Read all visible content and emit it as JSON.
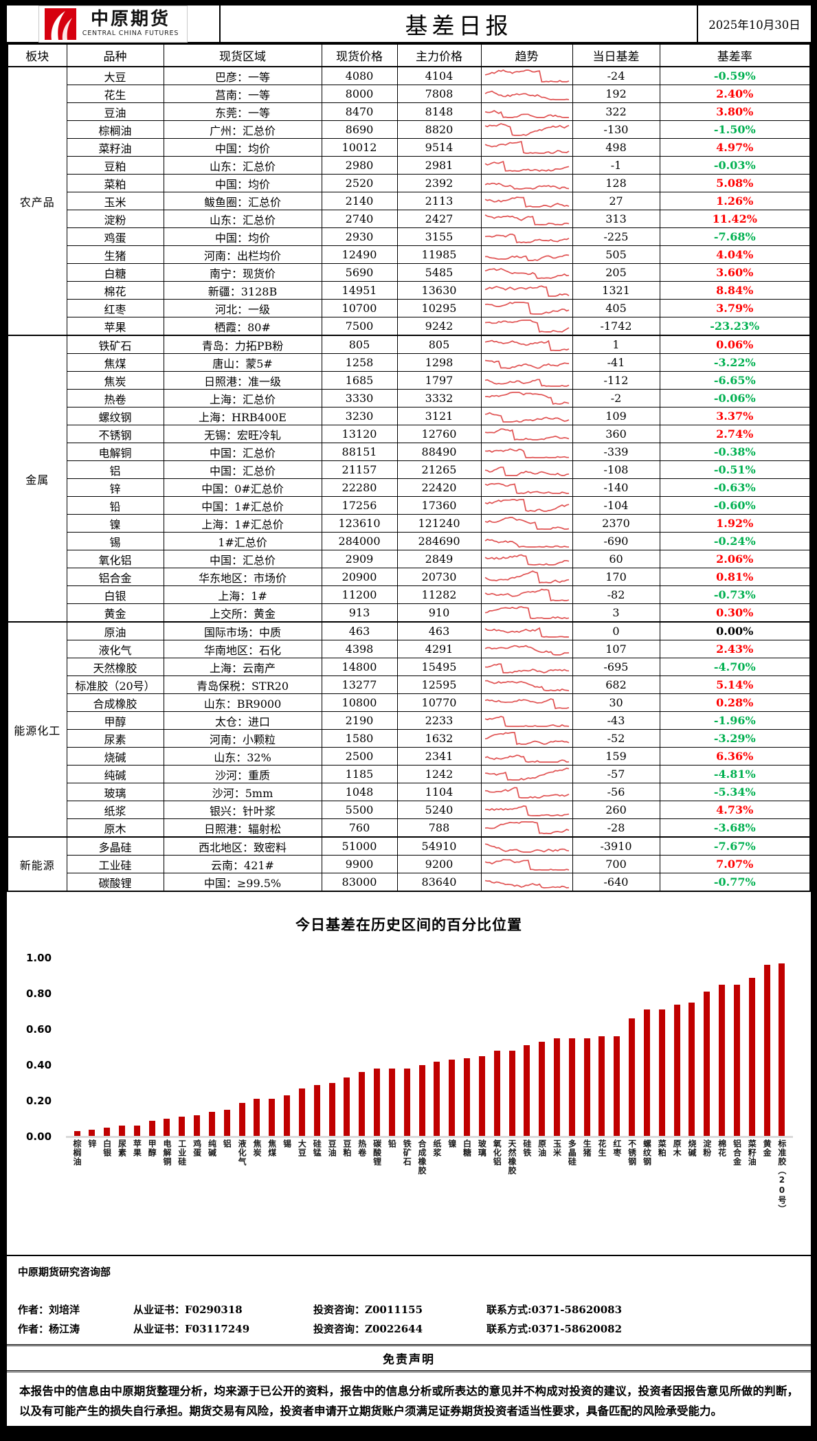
{
  "header": {
    "brand_cn": "中原期货",
    "brand_en": "CENTRAL CHINA FUTURES",
    "title": "基差日报",
    "date": "2025年10月30日"
  },
  "table": {
    "columns": [
      "板块",
      "品种",
      "现货区域",
      "现货价格",
      "主力价格",
      "趋势",
      "当日基差",
      "基差率"
    ],
    "sectors": [
      {
        "name": "农产品",
        "rows": [
          [
            "大豆",
            "巴彦：一等",
            "4080",
            "4104",
            "-24",
            "-0.59%"
          ],
          [
            "花生",
            "莒南：一等",
            "8000",
            "7808",
            "192",
            "2.40%"
          ],
          [
            "豆油",
            "东莞：一等",
            "8470",
            "8148",
            "322",
            "3.80%"
          ],
          [
            "棕榈油",
            "广州：汇总价",
            "8690",
            "8820",
            "-130",
            "-1.50%"
          ],
          [
            "菜籽油",
            "中国：均价",
            "10012",
            "9514",
            "498",
            "4.97%"
          ],
          [
            "豆粕",
            "山东：汇总价",
            "2980",
            "2981",
            "-1",
            "-0.03%"
          ],
          [
            "菜粕",
            "中国：均价",
            "2520",
            "2392",
            "128",
            "5.08%"
          ],
          [
            "玉米",
            "鲅鱼圈：汇总价",
            "2140",
            "2113",
            "27",
            "1.26%"
          ],
          [
            "淀粉",
            "山东：汇总价",
            "2740",
            "2427",
            "313",
            "11.42%"
          ],
          [
            "鸡蛋",
            "中国：均价",
            "2930",
            "3155",
            "-225",
            "-7.68%"
          ],
          [
            "生猪",
            "河南：出栏均价",
            "12490",
            "11985",
            "505",
            "4.04%"
          ],
          [
            "白糖",
            "南宁：现货价",
            "5690",
            "5485",
            "205",
            "3.60%"
          ],
          [
            "棉花",
            "新疆：3128B",
            "14951",
            "13630",
            "1321",
            "8.84%"
          ],
          [
            "红枣",
            "河北：一级",
            "10700",
            "10295",
            "405",
            "3.79%"
          ],
          [
            "苹果",
            "栖霞：80#",
            "7500",
            "9242",
            "-1742",
            "-23.23%"
          ]
        ]
      },
      {
        "name": "金属",
        "rows": [
          [
            "铁矿石",
            "青岛：力拓PB粉",
            "805",
            "805",
            "1",
            "0.06%"
          ],
          [
            "焦煤",
            "唐山：蒙5#",
            "1258",
            "1298",
            "-41",
            "-3.22%"
          ],
          [
            "焦炭",
            "日照港：准一级",
            "1685",
            "1797",
            "-112",
            "-6.65%"
          ],
          [
            "热卷",
            "上海：汇总价",
            "3330",
            "3332",
            "-2",
            "-0.06%"
          ],
          [
            "螺纹钢",
            "上海：HRB400E",
            "3230",
            "3121",
            "109",
            "3.37%"
          ],
          [
            "不锈钢",
            "无锡：宏旺冷轧",
            "13120",
            "12760",
            "360",
            "2.74%"
          ],
          [
            "电解铜",
            "中国：汇总价",
            "88151",
            "88490",
            "-339",
            "-0.38%"
          ],
          [
            "铝",
            "中国：汇总价",
            "21157",
            "21265",
            "-108",
            "-0.51%"
          ],
          [
            "锌",
            "中国：0#汇总价",
            "22280",
            "22420",
            "-140",
            "-0.63%"
          ],
          [
            "铅",
            "中国：1#汇总价",
            "17256",
            "17360",
            "-104",
            "-0.60%"
          ],
          [
            "镍",
            "上海：1#汇总价",
            "123610",
            "121240",
            "2370",
            "1.92%"
          ],
          [
            "锡",
            "1#汇总价",
            "284000",
            "284690",
            "-690",
            "-0.24%"
          ],
          [
            "氧化铝",
            "中国：汇总价",
            "2909",
            "2849",
            "60",
            "2.06%"
          ],
          [
            "铝合金",
            "华东地区：市场价",
            "20900",
            "20730",
            "170",
            "0.81%"
          ],
          [
            "白银",
            "上海：1#",
            "11200",
            "11282",
            "-82",
            "-0.73%"
          ],
          [
            "黄金",
            "上交所：黄金",
            "913",
            "910",
            "3",
            "0.30%"
          ]
        ]
      },
      {
        "name": "能源化工",
        "rows": [
          [
            "原油",
            "国际市场：中质",
            "463",
            "463",
            "0",
            "0.00%"
          ],
          [
            "液化气",
            "华南地区：石化",
            "4398",
            "4291",
            "107",
            "2.43%"
          ],
          [
            "天然橡胶",
            "上海：云南产",
            "14800",
            "15495",
            "-695",
            "-4.70%"
          ],
          [
            "标准胶（20号）",
            "青岛保税：STR20",
            "13277",
            "12595",
            "682",
            "5.14%"
          ],
          [
            "合成橡胶",
            "山东：BR9000",
            "10800",
            "10770",
            "30",
            "0.28%"
          ],
          [
            "甲醇",
            "太仓：进口",
            "2190",
            "2233",
            "-43",
            "-1.96%"
          ],
          [
            "尿素",
            "河南：小颗粒",
            "1580",
            "1632",
            "-52",
            "-3.29%"
          ],
          [
            "烧碱",
            "山东：32%",
            "2500",
            "2341",
            "159",
            "6.36%"
          ],
          [
            "纯碱",
            "沙河：重质",
            "1185",
            "1242",
            "-57",
            "-4.81%"
          ],
          [
            "玻璃",
            "沙河：5mm",
            "1048",
            "1104",
            "-56",
            "-5.34%"
          ],
          [
            "纸浆",
            "银兴：针叶浆",
            "5500",
            "5240",
            "260",
            "4.73%"
          ],
          [
            "原木",
            "日照港：辐射松",
            "760",
            "788",
            "-28",
            "-3.68%"
          ]
        ]
      },
      {
        "name": "新能源",
        "rows": [
          [
            "多晶硅",
            "西北地区：致密料",
            "51000",
            "54910",
            "-3910",
            "-7.67%"
          ],
          [
            "工业硅",
            "云南：421#",
            "9900",
            "9200",
            "700",
            "7.07%"
          ],
          [
            "碳酸锂",
            "中国：≥99.5%",
            "83000",
            "83640",
            "-640",
            "-0.77%"
          ]
        ]
      }
    ]
  },
  "chart_data": {
    "type": "bar",
    "title": "今日基差在历史区间的百分比位置",
    "bar_color": "#C00000",
    "ylim": [
      0,
      1
    ],
    "y_tick_labels": [
      "0.00",
      "0.20",
      "0.40",
      "0.60",
      "0.80",
      "1.00"
    ],
    "y_tick_values": [
      0,
      0.2,
      0.4,
      0.6,
      0.8,
      1.0
    ],
    "categories": [
      "棕榈油",
      "锌",
      "白银",
      "尿素",
      "苹果",
      "甲醇",
      "电解铜",
      "工业硅",
      "鸡蛋",
      "纯碱",
      "铝",
      "液化气",
      "焦炭",
      "焦煤",
      "锡",
      "大豆",
      "硅锰",
      "豆油",
      "豆粕",
      "热卷",
      "碳酸锂",
      "铅",
      "铁矿石",
      "合成橡胶",
      "纸浆",
      "镍",
      "白糖",
      "玻璃",
      "氧化铝",
      "天然橡胶",
      "硅铁",
      "原油",
      "玉米",
      "多晶硅",
      "生猪",
      "花生",
      "红枣",
      "不锈钢",
      "螺纹钢",
      "菜粕",
      "原木",
      "烧碱",
      "淀粉",
      "棉花",
      "铝合金",
      "菜籽油",
      "黄金",
      "标准胶（20号）"
    ],
    "values": [
      0.03,
      0.04,
      0.05,
      0.06,
      0.06,
      0.09,
      0.1,
      0.11,
      0.12,
      0.14,
      0.15,
      0.19,
      0.21,
      0.21,
      0.23,
      0.27,
      0.29,
      0.3,
      0.33,
      0.36,
      0.38,
      0.38,
      0.38,
      0.4,
      0.42,
      0.43,
      0.44,
      0.45,
      0.48,
      0.48,
      0.51,
      0.53,
      0.55,
      0.55,
      0.55,
      0.56,
      0.56,
      0.66,
      0.71,
      0.71,
      0.74,
      0.75,
      0.81,
      0.85,
      0.85,
      0.89,
      0.96,
      0.97
    ]
  },
  "colors": {
    "rate_positive": "#FE0000",
    "rate_negative": "#00B050",
    "sparkline": "#E05252",
    "bar": "#C00000",
    "logo_red": "#D6000F"
  },
  "footer": {
    "dept": "中原期货研究咨询部",
    "authors": [
      {
        "author": "作者：刘培洋",
        "cert": "从业证书：F0290318",
        "advisory": "投资咨询：Z0011155",
        "contact": "联系方式:0371-58620083"
      },
      {
        "author": "作者：杨江涛",
        "cert": "从业证书：F03117249",
        "advisory": "投资咨询：Z0022644",
        "contact": "联系方式:0371-58620082"
      }
    ],
    "disclaimer_title": "免责声明",
    "disclaimer": "本报告中的信息由中原期货整理分析，均来源于已公开的资料，报告中的信息分析或所表达的意见并不构成对投资的建议，投资者因报告意见所做的判断，以及有可能产生的损失自行承担。期货交易有风险，投资者申请开立期货账户须满足证券期货投资者适当性要求，具备匹配的风险承受能力。"
  }
}
